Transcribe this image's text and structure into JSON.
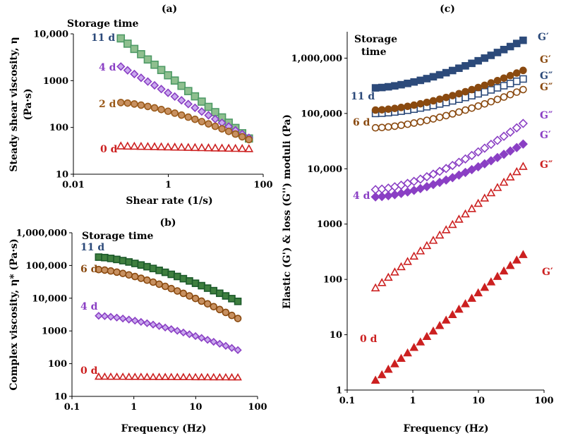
{
  "colors": {
    "d11_a": "#4e9a66",
    "d11_a_fill": "#8fbf8f",
    "d11_b": "#1c5a2a",
    "d11_b_fill": "#3f7f3f",
    "d11_c": "#2c4a7a",
    "d4": "#8a3fc4",
    "d4_fill": "#c9a9ee",
    "d2": "#9a5a1a",
    "d2_fill": "#c79060",
    "d6": "#8a4a10",
    "d0": "#cc2020",
    "storage_label": "#000000",
    "label_11d": "#2c4a7a",
    "label_4d": "#8a3fc4",
    "label_2d": "#9a5a1a",
    "label_6d": "#8a4a10",
    "label_0d": "#cc2020"
  },
  "chart_data": [
    {
      "id": "a",
      "type": "scatter",
      "title": "(a)",
      "xlabel": "Shear rate (1/s)",
      "ylabel_line1": "Steady shear viscosity, η",
      "ylabel_line2": "(Pa·s)",
      "xscale": "log",
      "yscale": "log",
      "xlim": [
        0.01,
        100
      ],
      "ylim": [
        10,
        10000
      ],
      "xticks": [
        0.01,
        1,
        100
      ],
      "xtick_labels": [
        "0.01",
        "1",
        "100"
      ],
      "yticks": [
        10,
        100,
        1000,
        10000
      ],
      "ytick_labels": [
        "10",
        "100",
        "1000",
        "10,000"
      ],
      "legend_title": "Storage time",
      "series": [
        {
          "name": "11 d",
          "marker": "square",
          "x_start": 0.1,
          "x_end": 50,
          "n": 20,
          "y_start": 8000,
          "y_end": 58,
          "shape": "power"
        },
        {
          "name": "4 d",
          "marker": "diamond",
          "x_start": 0.1,
          "x_end": 50,
          "n": 20,
          "y_start": 2000,
          "y_end": 60,
          "shape": "power"
        },
        {
          "name": "2 d",
          "marker": "circle",
          "x_start": 0.1,
          "x_end": 50,
          "n": 20,
          "y_start": 340,
          "y_end": 55,
          "shape": "bend"
        },
        {
          "name": "0 d",
          "marker": "triangle",
          "x_start": 0.1,
          "x_end": 50,
          "n": 20,
          "y_start": 40,
          "y_end": 35,
          "shape": "power"
        }
      ]
    },
    {
      "id": "b",
      "type": "scatter",
      "title": "(b)",
      "xlabel": "Frequency (Hz)",
      "ylabel": "Complex viscosity, η* (Pa·s)",
      "xscale": "log",
      "yscale": "log",
      "xlim": [
        0.1,
        100
      ],
      "ylim": [
        10,
        1000000
      ],
      "xticks": [
        0.1,
        1,
        10,
        100
      ],
      "xtick_labels": [
        "0.1",
        "1",
        "10",
        "100"
      ],
      "yticks": [
        10,
        100,
        1000,
        10000,
        100000,
        1000000
      ],
      "ytick_labels": [
        "10",
        "100",
        "1000",
        "10,000",
        "100,000",
        "1,000,000"
      ],
      "legend_title": "Storage time",
      "series": [
        {
          "name": "11 d",
          "marker": "square",
          "x_start": 0.27,
          "x_end": 48,
          "n": 24,
          "y_start": 180000,
          "y_end": 8000,
          "shape": "bend"
        },
        {
          "name": "6 d",
          "marker": "circle",
          "x_start": 0.27,
          "x_end": 48,
          "n": 24,
          "y_start": 75000,
          "y_end": 2400,
          "shape": "bend"
        },
        {
          "name": "4 d",
          "marker": "diamond",
          "x_start": 0.27,
          "x_end": 48,
          "n": 24,
          "y_start": 2900,
          "y_end": 260,
          "shape": "bend"
        },
        {
          "name": "0 d",
          "marker": "triangle",
          "x_start": 0.27,
          "x_end": 48,
          "n": 24,
          "y_start": 40,
          "y_end": 38,
          "shape": "power"
        }
      ]
    },
    {
      "id": "c",
      "type": "scatter",
      "title": "(c)",
      "xlabel": "Frequency (Hz)",
      "ylabel": "Elastic (G') & loss (G'') moduli (Pa)",
      "xscale": "log",
      "yscale": "log",
      "xlim": [
        0.1,
        100
      ],
      "ylim": [
        1,
        3000000
      ],
      "xticks": [
        0.1,
        1,
        10,
        100
      ],
      "xtick_labels": [
        "0.1",
        "1",
        "10",
        "100"
      ],
      "yticks": [
        1,
        10,
        100,
        1000,
        10000,
        100000,
        1000000
      ],
      "ytick_labels": [
        "1",
        "10",
        "100",
        "1000",
        "10,000",
        "100,000",
        "1,000,000"
      ],
      "legend_title_line1": "Storage",
      "legend_title_line2": "time",
      "day_labels": [
        "11 d",
        "6 d",
        "4 d",
        "0 d"
      ],
      "series": [
        {
          "name": "11 d G′",
          "label": "G′",
          "marker": "square",
          "filled": true,
          "x_start": 0.27,
          "x_end": 48,
          "n": 24,
          "y_start": 290000,
          "y_end": 2100000,
          "shape": "rise"
        },
        {
          "name": "11 d G″",
          "label": "G″",
          "marker": "square",
          "filled": false,
          "x_start": 0.27,
          "x_end": 48,
          "n": 24,
          "y_start": 100000,
          "y_end": 420000,
          "shape": "rise"
        },
        {
          "name": "6 d G′",
          "label": "G′",
          "marker": "circle",
          "filled": true,
          "x_start": 0.27,
          "x_end": 48,
          "n": 24,
          "y_start": 115000,
          "y_end": 600000,
          "shape": "rise"
        },
        {
          "name": "6 d G″",
          "label": "G″",
          "marker": "circle",
          "filled": false,
          "x_start": 0.27,
          "x_end": 48,
          "n": 24,
          "y_start": 55000,
          "y_end": 270000,
          "shape": "rise"
        },
        {
          "name": "4 d G″",
          "label": "G″",
          "marker": "diamond",
          "filled": false,
          "x_start": 0.27,
          "x_end": 48,
          "n": 24,
          "y_start": 4200,
          "y_end": 66000,
          "shape": "rise"
        },
        {
          "name": "4 d G′",
          "label": "G′",
          "marker": "diamond",
          "filled": true,
          "x_start": 0.27,
          "x_end": 48,
          "n": 24,
          "y_start": 3100,
          "y_end": 28000,
          "shape": "rise"
        },
        {
          "name": "0 d G″",
          "label": "G″",
          "marker": "triangle",
          "filled": false,
          "x_start": 0.27,
          "x_end": 48,
          "n": 24,
          "y_start": 70,
          "y_end": 11000,
          "shape": "power"
        },
        {
          "name": "0 d G′",
          "label": "G′",
          "marker": "triangle",
          "filled": true,
          "x_start": 0.27,
          "x_end": 48,
          "n": 24,
          "y_start": 1.5,
          "y_end": 280,
          "shape": "power"
        }
      ]
    }
  ]
}
